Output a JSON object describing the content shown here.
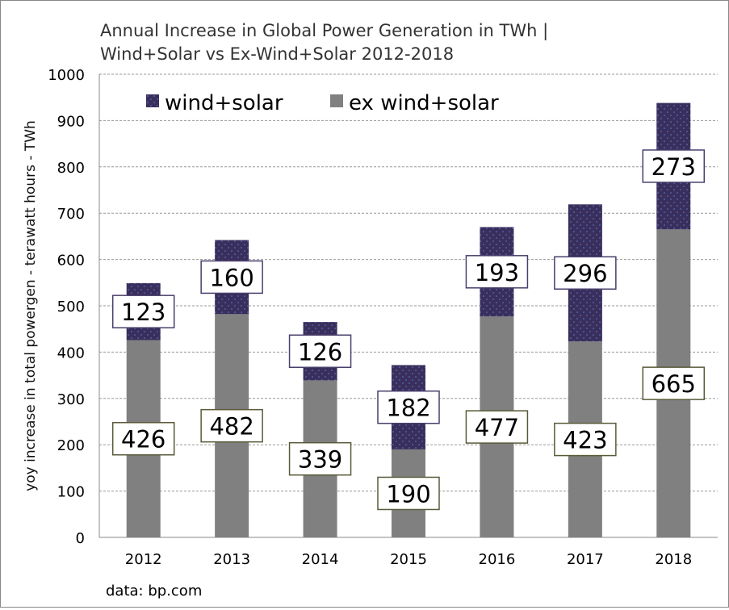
{
  "chart_data": {
    "type": "bar",
    "stacked": true,
    "title_line1": "Annual Increase in Global Power Generation in TWh |",
    "title_line2": "Wind+Solar vs Ex-Wind+Solar 2012-2018",
    "ylabel": "yoy increase in total powergen - terawatt hours  - TWh",
    "xlabel": "",
    "ylim": [
      0,
      1000
    ],
    "yticks": [
      0,
      100,
      200,
      300,
      400,
      500,
      600,
      700,
      800,
      900,
      1000
    ],
    "grid": true,
    "legend_placement": "top-left",
    "categories": [
      "2012",
      "2013",
      "2014",
      "2015",
      "2016",
      "2017",
      "2018"
    ],
    "series": [
      {
        "name": "ex wind+solar",
        "color": "#808080",
        "values": [
          426,
          482,
          339,
          190,
          477,
          423,
          665
        ]
      },
      {
        "name": "wind+solar",
        "color": "#3a2f5c",
        "values": [
          123,
          160,
          126,
          182,
          193,
          296,
          273
        ]
      }
    ],
    "source": "data: bp.com"
  }
}
